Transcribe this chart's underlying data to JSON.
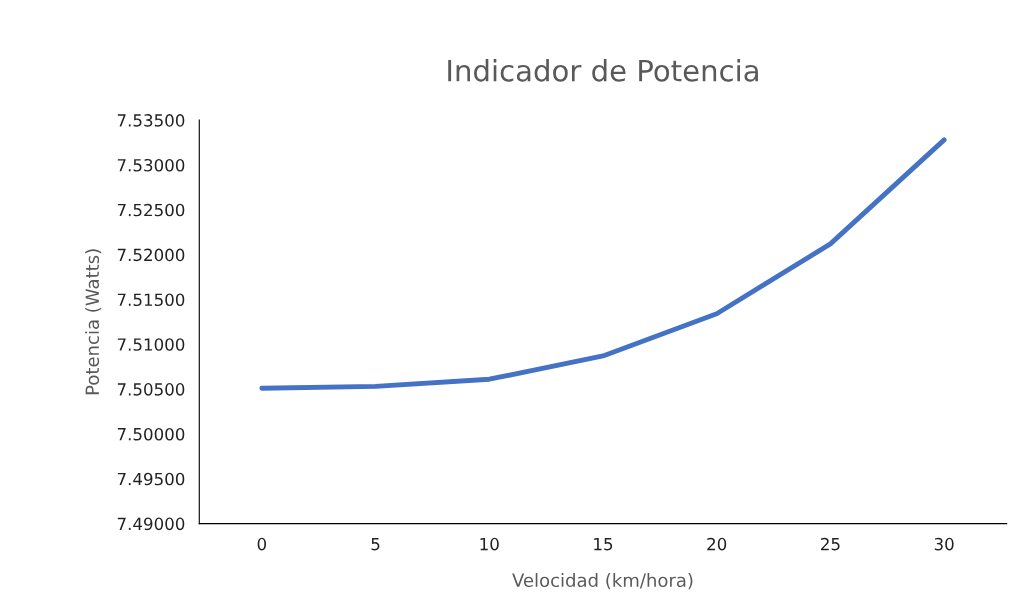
{
  "chart_data": {
    "type": "line",
    "title": "Indicador de Potencia",
    "xlabel": "Velocidad (km/hora)",
    "ylabel": "Potencia (Watts)",
    "categories": [
      "0",
      "5",
      "10",
      "15",
      "20",
      "25",
      "30"
    ],
    "series": [
      {
        "color": "#4472c4",
        "values": [
          7.5051,
          7.5053,
          7.5061,
          7.5087,
          7.5134,
          7.5212,
          7.5328
        ]
      }
    ],
    "ylim": [
      7.49,
      7.535
    ],
    "yticks": [
      {
        "value": 7.49,
        "label": "7.49000"
      },
      {
        "value": 7.495,
        "label": "7.49500"
      },
      {
        "value": 7.5,
        "label": "7.50000"
      },
      {
        "value": 7.505,
        "label": "7.50500"
      },
      {
        "value": 7.51,
        "label": "7.51000"
      },
      {
        "value": 7.515,
        "label": "7.51500"
      },
      {
        "value": 7.52,
        "label": "7.52000"
      },
      {
        "value": 7.525,
        "label": "7.52500"
      },
      {
        "value": 7.53,
        "label": "7.53000"
      },
      {
        "value": 7.535,
        "label": "7.53500"
      }
    ],
    "grid": false,
    "legend": false
  }
}
